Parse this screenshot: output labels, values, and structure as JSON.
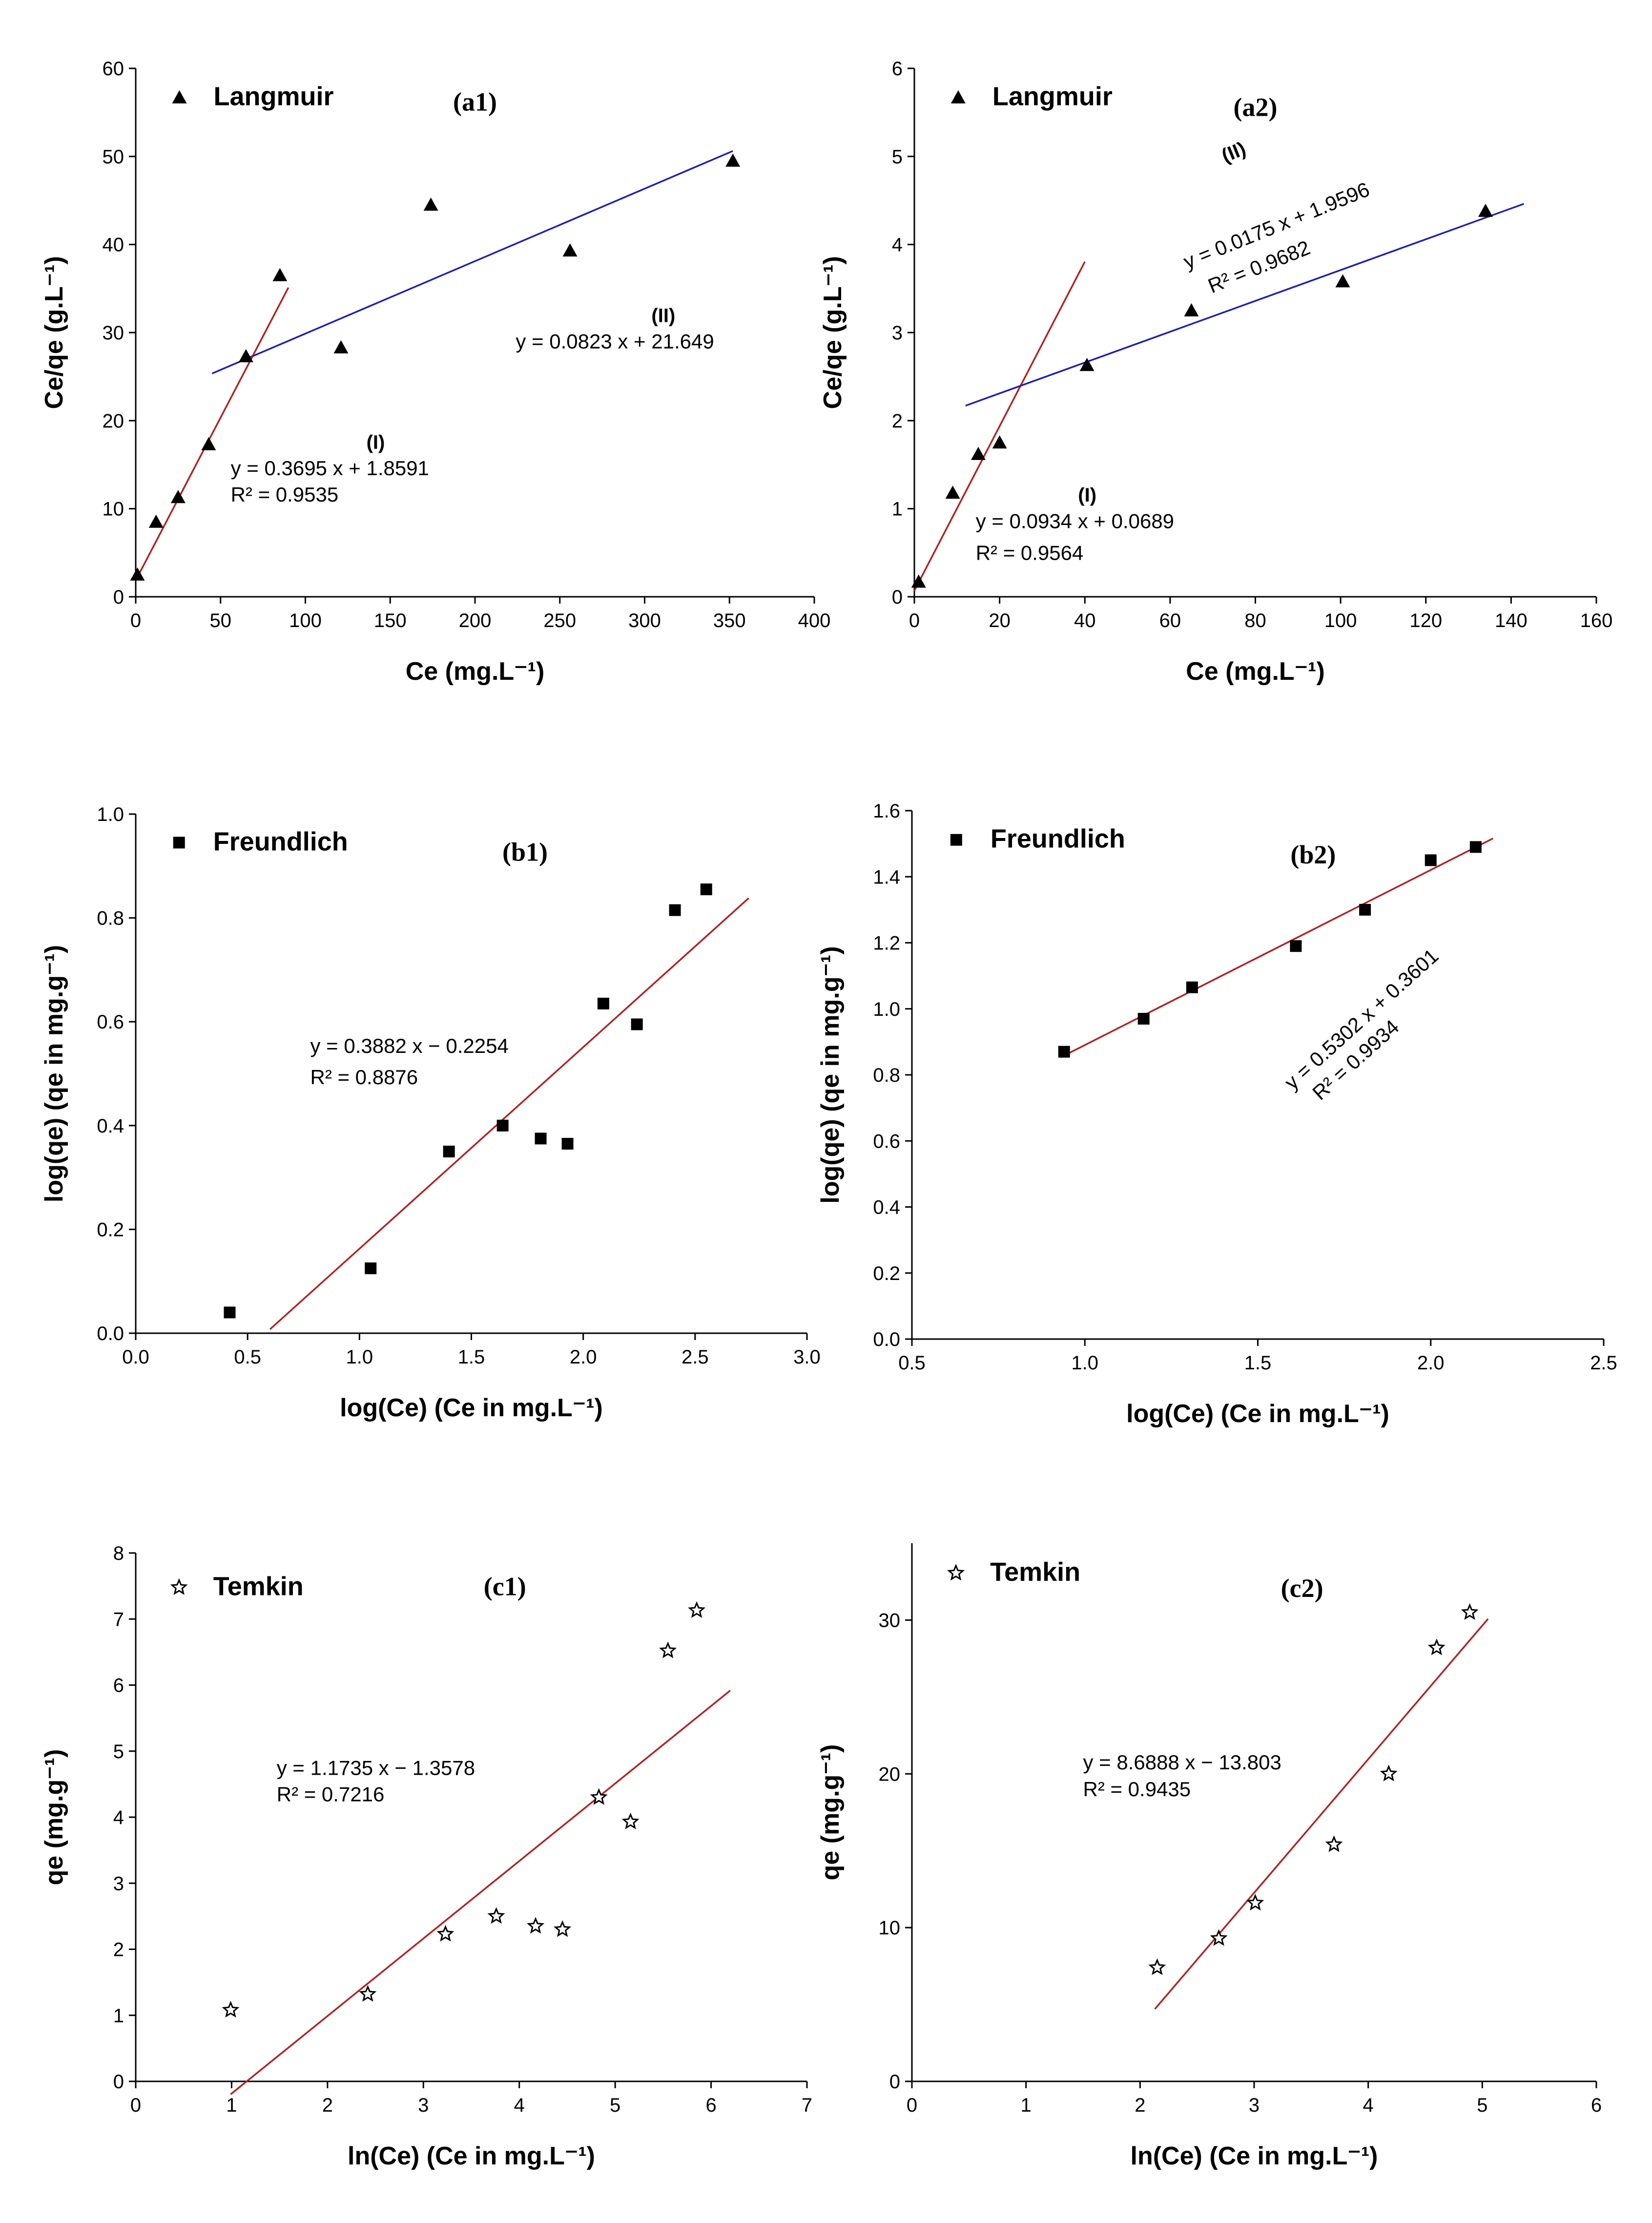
{
  "colors": {
    "red_fit": "#b22222",
    "blue_fit": "#1f1fb4",
    "marker": "#000000"
  },
  "chart_data": [
    {
      "id": "a1",
      "type": "scatter",
      "title": "(a1)",
      "legend": {
        "label": "Langmuir",
        "marker": "triangle"
      },
      "xlabel": "Ce (mg.L⁻¹)",
      "ylabel": "Ce/qe (g.L⁻¹)",
      "xlim": [
        0,
        400
      ],
      "ylim": [
        0,
        60
      ],
      "xticks": [
        "0",
        "50",
        "100",
        "150",
        "200",
        "250",
        "300",
        "350",
        "400"
      ],
      "yticks": [
        "0",
        "10",
        "20",
        "30",
        "40",
        "50",
        "60"
      ],
      "points": {
        "x": [
          1,
          12,
          25,
          43,
          65,
          85,
          121,
          174,
          256,
          352
        ],
        "y": [
          2.5,
          8.5,
          11.3,
          17.3,
          27.3,
          36.5,
          28.3,
          44.5,
          39.3,
          49.5
        ]
      },
      "fits": [
        {
          "label": "(I)",
          "equation": "y = 0.3695 x + 1.8591",
          "r2": "R² = 0.9535",
          "slope": 0.3695,
          "intercept": 1.8591,
          "x_range": [
            0,
            90
          ],
          "color": "red"
        },
        {
          "label": "(II)",
          "equation": "y = 0.0823 x + 21.649",
          "r2": "",
          "slope": 0.0823,
          "intercept": 21.649,
          "x_range": [
            45,
            352
          ],
          "color": "blue"
        }
      ]
    },
    {
      "id": "a2",
      "type": "scatter",
      "title": "(a2)",
      "legend": {
        "label": "Langmuir",
        "marker": "triangle"
      },
      "xlabel": "Ce (mg.L⁻¹)",
      "ylabel": "Ce/qe (g.L⁻¹)",
      "xlim": [
        0,
        160
      ],
      "ylim": [
        0,
        6
      ],
      "xticks": [
        "0",
        "20",
        "40",
        "60",
        "80",
        "100",
        "120",
        "140",
        "160"
      ],
      "yticks": [
        "0",
        "1",
        "2",
        "3",
        "4",
        "5",
        "6"
      ],
      "points": {
        "x": [
          1,
          9,
          15,
          20,
          40.5,
          65,
          100.5,
          134
        ],
        "y": [
          0.17,
          1.18,
          1.62,
          1.75,
          2.63,
          3.25,
          3.58,
          4.38
        ]
      },
      "fits": [
        {
          "label": "(I)",
          "equation": "y = 0.0934 x + 0.0689",
          "r2": "R² = 0.9564",
          "slope": 0.0934,
          "intercept": 0.0689,
          "x_range": [
            0,
            40
          ],
          "color": "red"
        },
        {
          "label": "(II)",
          "equation": "y = 0.0175 x + 1.9596",
          "r2": "R² = 0.9682",
          "slope": 0.0175,
          "intercept": 1.9596,
          "x_range": [
            12,
            143
          ],
          "color": "blue"
        }
      ]
    },
    {
      "id": "b1",
      "type": "scatter",
      "title": "(b1)",
      "legend": {
        "label": "Freundlich",
        "marker": "square"
      },
      "xlabel": "log(Ce) (Ce in mg.L⁻¹)",
      "ylabel": "log(qe) (qe in mg.g⁻¹)",
      "xlim": [
        0,
        3
      ],
      "ylim": [
        0,
        1
      ],
      "xticks": [
        "0.0",
        "0.5",
        "1.0",
        "1.5",
        "2.0",
        "2.5",
        "3.0"
      ],
      "yticks": [
        "0.0",
        "0.2",
        "0.4",
        "0.6",
        "0.8",
        "1.0"
      ],
      "points": {
        "x": [
          0.42,
          1.05,
          1.4,
          1.64,
          1.81,
          1.93,
          2.09,
          2.24,
          2.41,
          2.55
        ],
        "y": [
          0.04,
          0.125,
          0.35,
          0.4,
          0.375,
          0.365,
          0.635,
          0.595,
          0.815,
          0.855
        ]
      },
      "fits": [
        {
          "label": "",
          "equation": "y = 0.3882 x − 0.2254",
          "r2": "R² = 0.8876",
          "slope": 0.3882,
          "intercept": -0.2254,
          "x_range": [
            0.6,
            2.74
          ],
          "color": "red"
        }
      ]
    },
    {
      "id": "b2",
      "type": "scatter",
      "title": "(b2)",
      "legend": {
        "label": "Freundlich",
        "marker": "square"
      },
      "xlabel": "log(Ce) (Ce in mg.L⁻¹)",
      "ylabel": "log(qe) (qe in mg.g⁻¹)",
      "xlim": [
        0.5,
        2.5
      ],
      "ylim": [
        0,
        1.6
      ],
      "xticks": [
        "0.5",
        "1.0",
        "1.5",
        "2.0",
        "2.5"
      ],
      "yticks": [
        "0.0",
        "0.2",
        "0.4",
        "0.6",
        "0.8",
        "1.0",
        "1.2",
        "1.4",
        "1.6"
      ],
      "points": {
        "x": [
          0.94,
          1.17,
          1.31,
          1.61,
          1.81,
          2.0,
          2.13
        ],
        "y": [
          0.87,
          0.97,
          1.065,
          1.19,
          1.3,
          1.45,
          1.49
        ]
      },
      "fits": [
        {
          "label": "",
          "equation": "y = 0.5302 x + 0.3601",
          "r2": "R² = 0.9934",
          "slope": 0.5302,
          "intercept": 0.3601,
          "x_range": [
            0.93,
            2.18
          ],
          "color": "red"
        }
      ]
    },
    {
      "id": "c1",
      "type": "scatter",
      "title": "(c1)",
      "legend": {
        "label": "Temkin",
        "marker": "star"
      },
      "xlabel": "ln(Ce) (Ce in mg.L⁻¹)",
      "ylabel": "qe (mg.g⁻¹)",
      "xlim": [
        0,
        7
      ],
      "ylim": [
        0,
        8
      ],
      "xticks": [
        "0",
        "1",
        "2",
        "3",
        "4",
        "5",
        "6",
        "7"
      ],
      "yticks": [
        "0",
        "1",
        "2",
        "3",
        "4",
        "5",
        "6",
        "7",
        "8"
      ],
      "points": {
        "x": [
          0.99,
          2.42,
          3.23,
          3.76,
          4.17,
          4.45,
          4.83,
          5.16,
          5.55,
          5.85
        ],
        "y": [
          1.08,
          1.32,
          2.23,
          2.5,
          2.35,
          2.3,
          4.3,
          3.93,
          6.52,
          7.13
        ]
      },
      "fits": [
        {
          "label": "",
          "equation": "y = 1.1735 x − 1.3578",
          "r2": "R² = 0.7216",
          "slope": 1.1735,
          "intercept": -1.3578,
          "x_range": [
            0.99,
            6.2
          ],
          "color": "red"
        }
      ]
    },
    {
      "id": "c2",
      "type": "scatter",
      "title": "(c2)",
      "legend": {
        "label": "Temkin",
        "marker": "star"
      },
      "xlabel": "ln(Ce) (Ce in mg.L⁻¹)",
      "ylabel": "qe (mg.g⁻¹)",
      "xlim": [
        0,
        6
      ],
      "ylim": [
        0,
        35
      ],
      "xticks": [
        "0",
        "1",
        "2",
        "3",
        "4",
        "5",
        "6"
      ],
      "yticks": [
        "0",
        "10",
        "20",
        "30"
      ],
      "yticks_at": [
        0,
        10,
        20,
        30
      ],
      "points": {
        "x": [
          2.15,
          2.69,
          3.01,
          3.7,
          4.18,
          4.6,
          4.89
        ],
        "y": [
          7.4,
          9.3,
          11.6,
          15.4,
          20.0,
          28.2,
          30.5
        ]
      },
      "fits": [
        {
          "label": "",
          "equation": "y = 8.6888 x − 13.803",
          "r2": "R² = 0.9435",
          "slope": 8.6888,
          "intercept": -13.803,
          "x_range": [
            2.13,
            5.05
          ],
          "color": "red"
        }
      ]
    }
  ]
}
